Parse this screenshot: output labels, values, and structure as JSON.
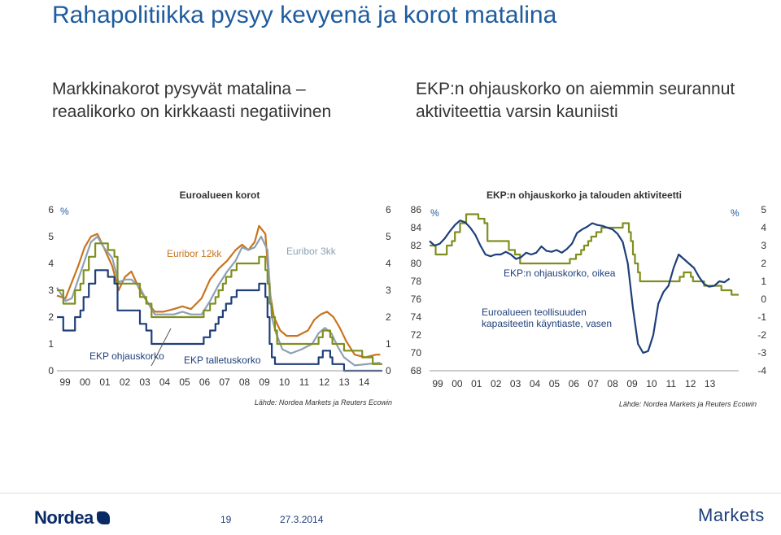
{
  "slide": {
    "title": "Rahapolitiikka pysyy kevyenä ja korot matalina",
    "left_subtitle": "Markkinakorot pysyvät matalina – reaalikorko on kirkkaasti negatiivinen",
    "right_subtitle": "EKP:n ohjauskorko on aiemmin seurannut aktiviteettia varsin kauniisti",
    "page_number": "19",
    "date": "27.3.2014",
    "logo_left": "Nordea",
    "logo_right": "Markets"
  },
  "colors": {
    "title": "#1f5c9e",
    "euribor12": "#c8741e",
    "euribor3": "#8da0b5",
    "ekp": "#7f8f1e",
    "deposit": "#1f3f7a",
    "capacity": "#1f3f7a"
  },
  "chart_data": [
    {
      "type": "line",
      "title": "Euroalueen korot",
      "unit_label": "%",
      "source": "Lähde: Nordea Markets ja Reuters Ecowin",
      "x_ticks": [
        "99",
        "00",
        "01",
        "02",
        "03",
        "04",
        "05",
        "06",
        "07",
        "08",
        "09",
        "10",
        "11",
        "12",
        "13",
        "14"
      ],
      "x_range": [
        1999.0,
        2014.3
      ],
      "ylim": [
        0,
        6
      ],
      "y_ticks_left": [
        "0",
        "1",
        "2",
        "3",
        "4",
        "5",
        "6"
      ],
      "y_ticks_right": [
        "0",
        "1",
        "2",
        "3",
        "4",
        "5",
        "6"
      ],
      "series": [
        {
          "name": "Euribor 12kk",
          "color_key": "euribor12",
          "x": [
            1999.0,
            1999.4,
            1999.7,
            2000.0,
            2000.3,
            2000.6,
            2000.9,
            2001.2,
            2001.6,
            2001.9,
            2002.2,
            2002.5,
            2002.9,
            2003.3,
            2003.6,
            2004.0,
            2004.5,
            2004.9,
            2005.3,
            2005.8,
            2006.2,
            2006.6,
            2007.0,
            2007.4,
            2007.7,
            2008.0,
            2008.3,
            2008.5,
            2008.8,
            2009.0,
            2009.2,
            2009.5,
            2009.8,
            2010.3,
            2010.8,
            2011.1,
            2011.4,
            2011.7,
            2012.0,
            2012.3,
            2012.6,
            2013.0,
            2013.5,
            2014.0,
            2014.2
          ],
          "values": [
            2.8,
            2.7,
            3.3,
            3.9,
            4.6,
            5.0,
            5.1,
            4.6,
            3.9,
            3.0,
            3.5,
            3.7,
            3.0,
            2.5,
            2.2,
            2.2,
            2.3,
            2.4,
            2.3,
            2.7,
            3.4,
            3.8,
            4.1,
            4.5,
            4.7,
            4.5,
            4.8,
            5.4,
            5.1,
            3.0,
            2.0,
            1.5,
            1.3,
            1.3,
            1.5,
            1.9,
            2.1,
            2.2,
            2.0,
            1.6,
            1.1,
            0.6,
            0.5,
            0.6,
            0.6
          ]
        },
        {
          "name": "Euribor 3kk",
          "color_key": "euribor3",
          "x": [
            1999.0,
            1999.4,
            1999.7,
            2000.0,
            2000.3,
            2000.6,
            2000.9,
            2001.2,
            2001.6,
            2001.9,
            2002.2,
            2002.5,
            2002.9,
            2003.3,
            2003.6,
            2004.0,
            2004.5,
            2004.9,
            2005.3,
            2005.8,
            2006.2,
            2006.6,
            2007.0,
            2007.4,
            2007.7,
            2008.0,
            2008.3,
            2008.6,
            2008.9,
            2009.1,
            2009.3,
            2009.6,
            2010.0,
            2010.5,
            2011.0,
            2011.3,
            2011.6,
            2011.9,
            2012.2,
            2012.5,
            2013.0,
            2014.2
          ],
          "values": [
            3.1,
            2.6,
            2.7,
            3.4,
            4.1,
            4.8,
            5.0,
            4.6,
            4.2,
            3.3,
            3.4,
            3.4,
            3.1,
            2.5,
            2.1,
            2.1,
            2.1,
            2.2,
            2.1,
            2.1,
            2.6,
            3.2,
            3.7,
            4.1,
            4.6,
            4.5,
            4.6,
            5.0,
            4.5,
            2.0,
            1.4,
            0.8,
            0.65,
            0.8,
            1.0,
            1.4,
            1.6,
            1.4,
            0.9,
            0.5,
            0.2,
            0.3
          ]
        },
        {
          "name": "EKP ohjauskorko",
          "color_key": "ekp",
          "step": true,
          "x": [
            1999.0,
            1999.3,
            1999.85,
            2000.1,
            2000.25,
            2000.5,
            2000.8,
            2001.4,
            2001.7,
            2001.85,
            2002.9,
            2003.2,
            2003.45,
            2005.9,
            2006.2,
            2006.45,
            2006.6,
            2006.8,
            2006.95,
            2007.2,
            2007.45,
            2008.5,
            2008.8,
            2008.9,
            2009.0,
            2009.1,
            2009.25,
            2009.35,
            2011.3,
            2011.5,
            2011.85,
            2011.95,
            2012.5,
            2013.35,
            2013.85,
            2014.3
          ],
          "values": [
            3.0,
            2.5,
            3.0,
            3.25,
            3.75,
            4.25,
            4.75,
            4.5,
            4.25,
            3.25,
            2.75,
            2.5,
            2.0,
            2.25,
            2.5,
            2.75,
            3.0,
            3.25,
            3.5,
            3.75,
            4.0,
            4.25,
            3.75,
            3.25,
            2.5,
            2.0,
            1.5,
            1.0,
            1.25,
            1.5,
            1.25,
            1.0,
            0.75,
            0.5,
            0.25,
            0.25
          ]
        },
        {
          "name": "EKP talletuskorko",
          "color_key": "deposit",
          "step": true,
          "x": [
            1999.0,
            1999.3,
            1999.85,
            2000.1,
            2000.25,
            2000.5,
            2000.8,
            2001.4,
            2001.7,
            2001.85,
            2002.9,
            2003.2,
            2003.45,
            2005.9,
            2006.2,
            2006.45,
            2006.6,
            2006.8,
            2006.95,
            2007.2,
            2007.45,
            2008.5,
            2008.8,
            2008.9,
            2009.0,
            2009.1,
            2009.25,
            2011.3,
            2011.5,
            2011.85,
            2011.95,
            2012.5,
            2014.3
          ],
          "values": [
            2.0,
            1.5,
            2.0,
            2.25,
            2.75,
            3.25,
            3.75,
            3.5,
            3.25,
            2.25,
            1.75,
            1.5,
            1.0,
            1.25,
            1.5,
            1.75,
            2.0,
            2.25,
            2.5,
            2.75,
            3.0,
            3.25,
            2.75,
            2.0,
            1.0,
            0.5,
            0.25,
            0.5,
            0.75,
            0.5,
            0.25,
            0.0,
            0.0
          ]
        }
      ],
      "annotations": {
        "euribor12": "Euribor 12kk",
        "euribor3": "Euribor 3kk",
        "ekp": "EKP ohjauskorko",
        "deposit": "EKP talletuskorko"
      }
    },
    {
      "type": "line",
      "title": "EKP:n ohjauskorko ja talouden aktiviteetti",
      "unit_label_left": "%",
      "unit_label_right": "%",
      "source": "Lähde: Nordea Markets ja Reuters Ecowin",
      "x_ticks": [
        "99",
        "00",
        "01",
        "02",
        "03",
        "04",
        "05",
        "06",
        "07",
        "08",
        "09",
        "10",
        "11",
        "12",
        "13"
      ],
      "x_range": [
        1999.0,
        2014.2
      ],
      "ylim_left": [
        68,
        86
      ],
      "ylim_right": [
        -4,
        5
      ],
      "y_ticks_left": [
        "68",
        "70",
        "72",
        "74",
        "76",
        "78",
        "80",
        "82",
        "84",
        "86"
      ],
      "y_ticks_right": [
        "-4",
        "-3",
        "-2",
        "-1",
        "0",
        "1",
        "2",
        "3",
        "4",
        "5"
      ],
      "series": [
        {
          "name": "EKP:n ohjauskorko, oikea",
          "axis": "right",
          "color_key": "ekp",
          "step": true,
          "x": [
            1999.0,
            1999.3,
            1999.85,
            2000.1,
            2000.25,
            2000.5,
            2000.8,
            2001.4,
            2001.7,
            2001.85,
            2002.9,
            2003.2,
            2003.45,
            2005.9,
            2006.2,
            2006.45,
            2006.6,
            2006.8,
            2006.95,
            2007.2,
            2007.45,
            2008.5,
            2008.8,
            2008.9,
            2009.0,
            2009.1,
            2009.25,
            2009.35,
            2011.3,
            2011.5,
            2011.85,
            2011.95,
            2012.5,
            2013.35,
            2013.85,
            2014.2
          ],
          "values": [
            3.0,
            2.5,
            3.0,
            3.25,
            3.75,
            4.25,
            4.75,
            4.5,
            4.25,
            3.25,
            2.75,
            2.5,
            2.0,
            2.25,
            2.5,
            2.75,
            3.0,
            3.25,
            3.5,
            3.75,
            4.0,
            4.25,
            3.75,
            3.25,
            2.5,
            2.0,
            1.5,
            1.0,
            1.25,
            1.5,
            1.25,
            1.0,
            0.75,
            0.5,
            0.25,
            0.25
          ]
        },
        {
          "name": "Euroalueen teollisuuden kapasiteetin käyntiaste, vasen",
          "axis": "left",
          "color_key": "capacity",
          "x": [
            1999.0,
            1999.25,
            1999.5,
            1999.75,
            2000.0,
            2000.25,
            2000.5,
            2000.75,
            2001.0,
            2001.25,
            2001.5,
            2001.75,
            2002.0,
            2002.25,
            2002.5,
            2002.75,
            2003.0,
            2003.25,
            2003.5,
            2003.75,
            2004.0,
            2004.25,
            2004.5,
            2004.75,
            2005.0,
            2005.25,
            2005.5,
            2005.75,
            2006.0,
            2006.25,
            2006.5,
            2006.75,
            2007.0,
            2007.25,
            2007.5,
            2007.75,
            2008.0,
            2008.25,
            2008.5,
            2008.75,
            2009.0,
            2009.25,
            2009.5,
            2009.75,
            2010.0,
            2010.25,
            2010.5,
            2010.75,
            2011.0,
            2011.25,
            2011.5,
            2011.75,
            2012.0,
            2012.25,
            2012.5,
            2012.75,
            2013.0,
            2013.25,
            2013.5,
            2013.75
          ],
          "values": [
            82.5,
            82.0,
            82.2,
            82.8,
            83.6,
            84.3,
            84.8,
            84.6,
            84.0,
            83.2,
            82.0,
            81.0,
            80.8,
            81.0,
            81.0,
            81.3,
            81.0,
            80.5,
            80.7,
            81.2,
            81.0,
            81.2,
            81.9,
            81.4,
            81.3,
            81.5,
            81.2,
            81.6,
            82.2,
            83.4,
            83.8,
            84.1,
            84.5,
            84.3,
            84.2,
            84.0,
            83.8,
            83.3,
            82.4,
            80.0,
            75.0,
            71.0,
            70.0,
            70.2,
            72.0,
            75.5,
            76.8,
            77.5,
            79.5,
            81.0,
            80.5,
            80.0,
            79.5,
            78.5,
            77.7,
            77.4,
            77.5,
            78.0,
            77.9,
            78.3
          ]
        }
      ],
      "annotations": {
        "ekp": "EKP:n ohjauskorko, oikea",
        "capacity_line1": "Euroalueen teollisuuden",
        "capacity_line2": "kapasiteetin käyntiaste, vasen"
      }
    }
  ]
}
